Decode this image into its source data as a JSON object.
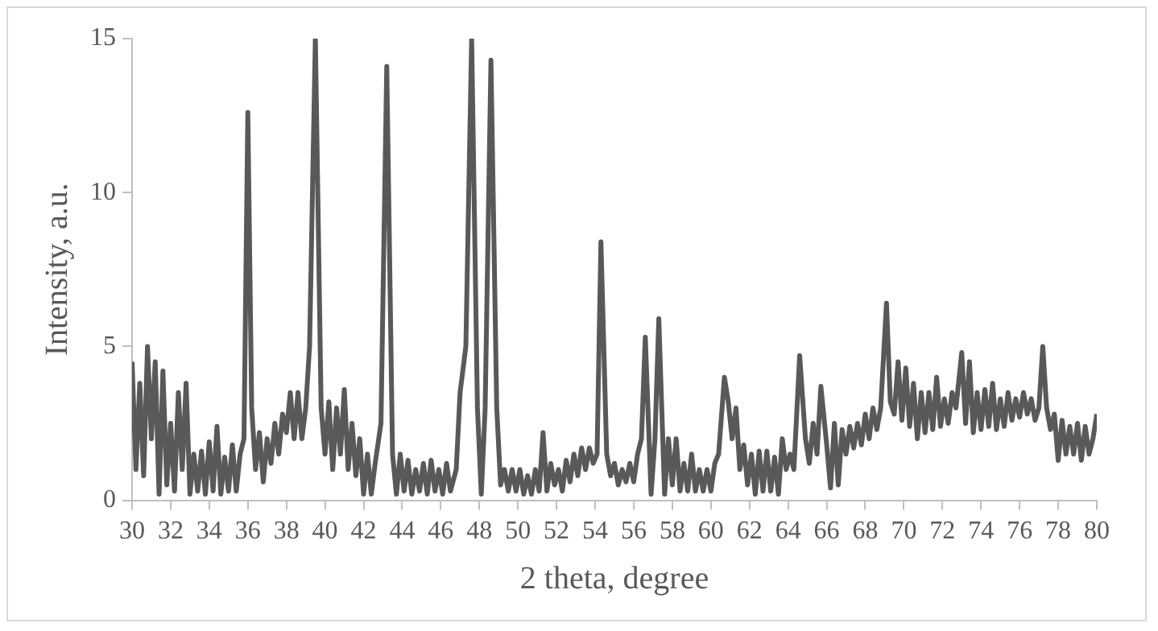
{
  "chart_data": {
    "type": "line",
    "xlabel": "2 theta, degree",
    "ylabel": "Intensity, a.u.",
    "xlim": [
      30,
      80
    ],
    "xticks": [
      30,
      32,
      34,
      36,
      38,
      40,
      42,
      44,
      46,
      48,
      50,
      52,
      54,
      56,
      58,
      60,
      62,
      64,
      66,
      68,
      70,
      72,
      74,
      76,
      78,
      80
    ],
    "ylim": [
      0,
      15
    ],
    "yticks": [
      0,
      5,
      10,
      15
    ],
    "grid": false,
    "legend": false,
    "x": [
      30.0,
      30.2,
      30.4,
      30.6,
      30.8,
      31.0,
      31.2,
      31.4,
      31.6,
      31.8,
      32.0,
      32.2,
      32.4,
      32.6,
      32.8,
      33.0,
      33.2,
      33.4,
      33.6,
      33.8,
      34.0,
      34.2,
      34.4,
      34.6,
      34.8,
      35.0,
      35.2,
      35.4,
      35.6,
      35.8,
      36.0,
      36.2,
      36.4,
      36.6,
      36.8,
      37.0,
      37.2,
      37.4,
      37.6,
      37.8,
      38.0,
      38.2,
      38.4,
      38.6,
      38.8,
      39.0,
      39.2,
      39.5,
      39.8,
      40.0,
      40.2,
      40.4,
      40.6,
      40.8,
      41.0,
      41.2,
      41.4,
      41.6,
      41.8,
      42.0,
      42.2,
      42.4,
      42.6,
      42.9,
      43.2,
      43.5,
      43.7,
      43.9,
      44.1,
      44.3,
      44.5,
      44.7,
      44.9,
      45.1,
      45.3,
      45.5,
      45.7,
      45.9,
      46.1,
      46.3,
      46.5,
      46.8,
      47.0,
      47.3,
      47.6,
      47.9,
      48.1,
      48.3,
      48.6,
      48.9,
      49.1,
      49.3,
      49.5,
      49.7,
      49.9,
      50.1,
      50.3,
      50.5,
      50.7,
      50.9,
      51.1,
      51.3,
      51.5,
      51.7,
      51.9,
      52.1,
      52.3,
      52.5,
      52.7,
      52.9,
      53.1,
      53.3,
      53.5,
      53.7,
      53.9,
      54.1,
      54.3,
      54.6,
      54.8,
      55.0,
      55.2,
      55.4,
      55.6,
      55.8,
      56.0,
      56.2,
      56.4,
      56.6,
      56.9,
      57.1,
      57.3,
      57.6,
      57.8,
      58.0,
      58.2,
      58.4,
      58.6,
      58.8,
      59.0,
      59.2,
      59.4,
      59.6,
      59.8,
      60.0,
      60.2,
      60.4,
      60.7,
      60.9,
      61.1,
      61.3,
      61.5,
      61.7,
      61.9,
      62.1,
      62.3,
      62.5,
      62.7,
      62.9,
      63.1,
      63.3,
      63.5,
      63.7,
      63.9,
      64.1,
      64.3,
      64.6,
      64.9,
      65.1,
      65.3,
      65.5,
      65.7,
      66.0,
      66.2,
      66.4,
      66.6,
      66.8,
      67.0,
      67.2,
      67.4,
      67.6,
      67.8,
      68.0,
      68.2,
      68.4,
      68.6,
      68.8,
      69.1,
      69.3,
      69.5,
      69.7,
      69.9,
      70.1,
      70.3,
      70.5,
      70.7,
      70.9,
      71.1,
      71.3,
      71.5,
      71.7,
      71.9,
      72.1,
      72.3,
      72.5,
      72.7,
      73.0,
      73.2,
      73.4,
      73.6,
      73.8,
      74.0,
      74.2,
      74.4,
      74.6,
      74.8,
      75.0,
      75.2,
      75.4,
      75.6,
      75.8,
      76.0,
      76.2,
      76.4,
      76.6,
      76.8,
      77.0,
      77.2,
      77.4,
      77.6,
      77.8,
      78.0,
      78.2,
      78.4,
      78.6,
      78.8,
      79.0,
      79.2,
      79.4,
      79.6,
      79.8,
      80.0
    ],
    "series": [
      {
        "color": "#595959",
        "values": [
          4.5,
          1.0,
          3.8,
          0.8,
          5.0,
          2.0,
          4.5,
          0.2,
          4.2,
          0.5,
          2.5,
          0.3,
          3.5,
          1.0,
          3.8,
          0.2,
          1.5,
          0.3,
          1.6,
          0.2,
          1.9,
          0.3,
          2.4,
          0.2,
          1.4,
          0.3,
          1.8,
          0.3,
          1.5,
          2.0,
          12.6,
          3.0,
          1.0,
          2.2,
          0.6,
          2.0,
          1.2,
          2.5,
          1.5,
          2.8,
          2.2,
          3.5,
          2.0,
          3.5,
          2.0,
          3.0,
          5.0,
          15.0,
          3.0,
          1.5,
          3.2,
          1.0,
          3.0,
          1.5,
          3.6,
          1.0,
          2.5,
          0.8,
          2.0,
          0.2,
          1.5,
          0.2,
          1.2,
          2.5,
          14.1,
          1.5,
          0.2,
          1.5,
          0.3,
          1.3,
          0.2,
          1.0,
          0.3,
          1.2,
          0.2,
          1.3,
          0.3,
          1.0,
          0.2,
          1.2,
          0.3,
          1.0,
          3.5,
          5.0,
          15.0,
          3.0,
          0.2,
          3.0,
          14.3,
          3.0,
          0.5,
          1.0,
          0.3,
          1.0,
          0.3,
          1.0,
          0.2,
          0.8,
          0.2,
          1.0,
          0.3,
          2.2,
          0.3,
          1.2,
          0.5,
          1.0,
          0.3,
          1.3,
          0.6,
          1.5,
          0.8,
          1.7,
          1.0,
          1.7,
          1.2,
          1.5,
          8.4,
          1.5,
          0.8,
          1.2,
          0.5,
          1.0,
          0.6,
          1.2,
          0.6,
          1.5,
          2.0,
          5.3,
          0.2,
          2.0,
          5.9,
          0.2,
          2.0,
          0.5,
          2.0,
          0.3,
          1.2,
          0.3,
          1.5,
          0.3,
          1.0,
          0.3,
          1.0,
          0.3,
          1.2,
          1.5,
          4.0,
          3.2,
          2.0,
          3.0,
          1.0,
          1.8,
          0.5,
          1.5,
          0.2,
          1.6,
          0.3,
          1.6,
          0.3,
          1.4,
          0.2,
          2.0,
          1.0,
          1.5,
          1.0,
          4.7,
          2.0,
          1.2,
          2.5,
          1.5,
          3.7,
          1.8,
          0.4,
          2.5,
          0.5,
          2.3,
          1.5,
          2.4,
          1.7,
          2.5,
          1.8,
          2.8,
          2.0,
          3.0,
          2.3,
          3.0,
          6.4,
          3.2,
          2.8,
          4.5,
          2.6,
          4.3,
          2.4,
          3.8,
          2.0,
          3.5,
          2.2,
          3.5,
          2.3,
          4.0,
          2.4,
          3.3,
          2.5,
          3.5,
          3.0,
          4.8,
          2.5,
          4.5,
          2.2,
          3.5,
          2.3,
          3.6,
          2.4,
          3.8,
          2.3,
          3.3,
          2.4,
          3.5,
          2.6,
          3.3,
          2.7,
          3.5,
          2.8,
          3.3,
          2.6,
          3.0,
          5.0,
          3.0,
          2.3,
          2.8,
          1.3,
          2.6,
          1.5,
          2.4,
          1.5,
          2.5,
          1.3,
          2.4,
          1.5,
          2.0,
          2.8
        ]
      }
    ]
  }
}
